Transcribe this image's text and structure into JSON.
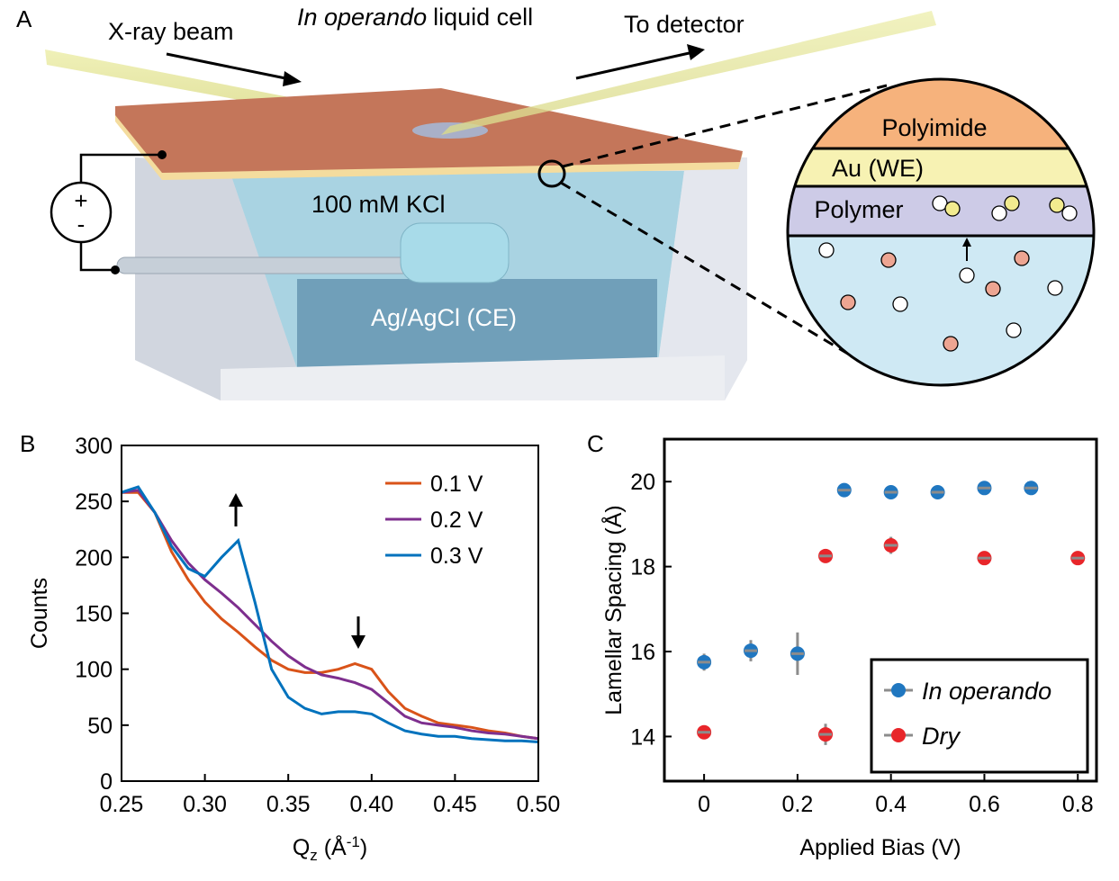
{
  "panel_labels": [
    "A",
    "B",
    "C"
  ],
  "diagram": {
    "beam_in": "X-ray beam",
    "cell_italic": "In operando",
    "cell_rest": "liquid cell",
    "beam_out": "To detector",
    "electrolyte": "100 mM KCl",
    "counter_electrode": "Ag/AgCl (CE)",
    "plus": "+",
    "minus": "-",
    "layers": [
      "Polyimide",
      "Au (WE)",
      "Polymer"
    ]
  },
  "chart_data": [
    {
      "type": "line",
      "y_label": "Counts",
      "x_label": {
        "main": "Q",
        "sub": "z",
        "open": " (Å",
        "sup": "-1",
        "close": ")"
      },
      "x": [
        0.25,
        0.26,
        0.27,
        0.28,
        0.29,
        0.3,
        0.31,
        0.32,
        0.33,
        0.34,
        0.35,
        0.36,
        0.37,
        0.38,
        0.39,
        0.4,
        0.41,
        0.42,
        0.43,
        0.44,
        0.45,
        0.46,
        0.47,
        0.48,
        0.49,
        0.5
      ],
      "series": [
        {
          "name": "0.1 V",
          "color": "#d95319",
          "values": [
            258,
            258,
            240,
            205,
            180,
            160,
            145,
            133,
            120,
            108,
            100,
            97,
            97,
            100,
            105,
            100,
            80,
            65,
            58,
            52,
            50,
            48,
            45,
            43,
            40,
            38
          ]
        },
        {
          "name": "0.2 V",
          "color": "#7e2f8e",
          "values": [
            258,
            260,
            240,
            215,
            195,
            180,
            168,
            155,
            140,
            125,
            112,
            102,
            95,
            92,
            88,
            82,
            70,
            58,
            52,
            50,
            48,
            45,
            43,
            42,
            40,
            38
          ]
        },
        {
          "name": "0.3 V",
          "color": "#0072bd",
          "values": [
            258,
            263,
            240,
            210,
            190,
            183,
            200,
            215,
            160,
            100,
            75,
            65,
            60,
            62,
            62,
            60,
            52,
            45,
            42,
            40,
            40,
            38,
            37,
            36,
            36,
            35
          ]
        }
      ],
      "xlim": [
        0.25,
        0.5
      ],
      "ylim": [
        0,
        300
      ],
      "xticks": [
        0.25,
        {
          "value": 0.3,
          "label": "0.30"
        },
        0.35,
        {
          "value": 0.4,
          "label": "0.40"
        },
        0.45,
        {
          "value": 0.5,
          "label": "0.50"
        }
      ],
      "yticks": [
        0,
        50,
        100,
        150,
        200,
        250,
        300
      ],
      "legend": "upper right"
    },
    {
      "type": "scatter",
      "y_label": "Lamellar Spacing (Å)",
      "x_label": "Applied Bias (V)",
      "series": [
        {
          "name": "In operando",
          "color": "#2077c0",
          "x": [
            0,
            0.1,
            0.2,
            0.3,
            0.4,
            0.5,
            0.6,
            0.7
          ],
          "values": [
            15.75,
            16.02,
            15.95,
            19.8,
            19.75,
            19.75,
            19.85,
            19.85
          ],
          "errors": [
            0.2,
            0.25,
            0.5,
            0.08,
            0.06,
            0.05,
            0.06,
            0.05
          ]
        },
        {
          "name": "Dry",
          "color": "#e8262a",
          "x": [
            0,
            0.26,
            0.26,
            0.4,
            0.6,
            0.8
          ],
          "values": [
            14.1,
            14.05,
            18.25,
            18.5,
            18.2,
            18.2
          ],
          "errors": [
            0.05,
            0.25,
            0.08,
            0.2,
            0.08,
            0.15
          ]
        }
      ],
      "xlim": [
        -0.085,
        0.84
      ],
      "ylim": [
        12.95,
        21
      ],
      "xticks": [
        0,
        0.2,
        0.4,
        0.6,
        0.8
      ],
      "yticks": [
        14,
        16,
        18,
        20
      ],
      "legend": "lower right"
    }
  ]
}
